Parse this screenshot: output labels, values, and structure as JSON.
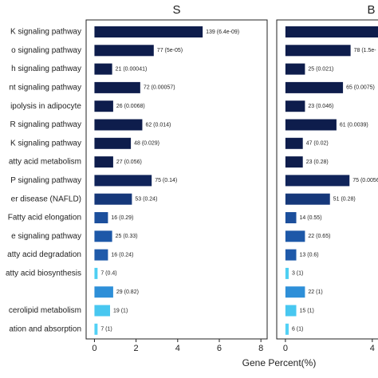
{
  "chart_data": [
    {
      "type": "bar",
      "orientation": "horizontal",
      "title": "S",
      "xlabel": "Gene Percent(%)",
      "categories": [
        "K signaling pathway",
        "o signaling pathway",
        "h signaling pathway",
        "nt signaling pathway",
        "ipolysis in adipocyte",
        "R signaling pathway",
        "K signaling pathway",
        "atty acid metabolism",
        "P signaling pathway",
        "er disease (NAFLD)",
        "Fatty acid elongation",
        "e signaling pathway",
        "atty acid degradation",
        "atty acid biosynthesis",
        null,
        "cerolipid metabolism",
        "ation and absorption"
      ],
      "values": [
        5.2,
        2.85,
        0.85,
        2.2,
        0.9,
        2.3,
        1.75,
        0.9,
        2.75,
        1.8,
        0.65,
        0.85,
        0.65,
        0.15,
        0.9,
        0.75,
        0.15
      ],
      "bar_labels": [
        "139 (6.4e-09)",
        "77 (5e-05)",
        "21 (0.00041)",
        "72 (0.00057)",
        "26 (0.0068)",
        "62 (0.014)",
        "48 (0.029)",
        "27 (0.056)",
        "75 (0.14)",
        "53 (0.24)",
        "16 (0.29)",
        "25 (0.33)",
        "16 (0.24)",
        "7 (0.4)",
        "29 (0.82)",
        "19 (1)",
        "7 (1)"
      ],
      "colors": [
        "#0e1d4c",
        "#0e1d4c",
        "#0e1d4c",
        "#0e1d4c",
        "#0e1d4c",
        "#0e1d4c",
        "#0e1d4c",
        "#0e1d4c",
        "#10245a",
        "#16387a",
        "#1c4f9c",
        "#1d58a8",
        "#1f5aaa",
        "#4ecff2",
        "#2e8fd8",
        "#48c7f0",
        "#52d1f5"
      ],
      "xlim": [
        -0.4,
        8.3
      ],
      "xticks": [
        0,
        2,
        4,
        6,
        8
      ]
    },
    {
      "type": "bar",
      "orientation": "horizontal",
      "title": "B",
      "values": [
        5.1,
        3.0,
        0.9,
        2.65,
        0.9,
        2.35,
        0.8,
        0.8,
        2.95,
        2.05,
        0.5,
        0.9,
        0.5,
        0.15,
        0.9,
        0.5,
        0.15
      ],
      "bar_labels": [
        null,
        "78 (1.5e-",
        "25 (0.021)",
        "65 (0.0075)",
        "23 (0.046)",
        "61 (0.0039)",
        "47 (0.02)",
        "23 (0.28)",
        "75 (0.0056",
        "51 (0.28)",
        "14 (0.55)",
        "22 (0.65)",
        "13 (0.6)",
        "3 (1)",
        "22 (1)",
        "15 (1)",
        "6 (1)"
      ],
      "colors": [
        "#0e1d4c",
        "#0e1d4c",
        "#0e1d4c",
        "#0e1d4c",
        "#0e1d4c",
        "#0e1d4c",
        "#0e1d4c",
        "#0e1d4c",
        "#10245a",
        "#16387a",
        "#1c4f9c",
        "#1d58a8",
        "#1f5aaa",
        "#4ecff2",
        "#2e8fd8",
        "#48c7f0",
        "#52d1f5"
      ],
      "xlim": [
        -0.4,
        8.3
      ],
      "xticks": [
        0,
        4
      ]
    }
  ]
}
